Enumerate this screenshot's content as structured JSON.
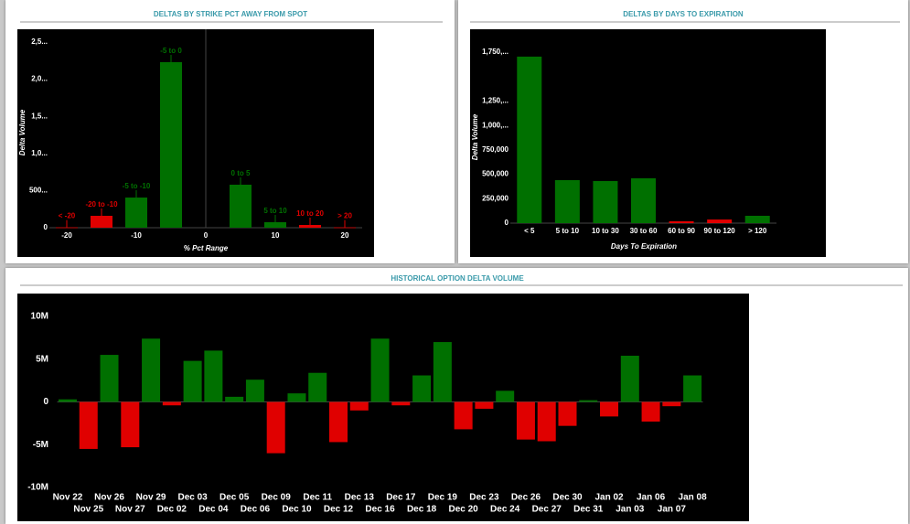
{
  "chart_data": [
    {
      "type": "bar",
      "title": "DELTAS BY STRIKE PCT AWAY FROM SPOT",
      "y_label": "Delta Volume",
      "x_label": "% Pct Range",
      "categories": [
        "< -20",
        "-20 to -10",
        "-5 to -10",
        "-5 to 0",
        "0 to 5",
        "5 to 10",
        "10 to 20",
        "> 20"
      ],
      "x": [
        -20,
        -15,
        -10,
        -5,
        5,
        10,
        15,
        20
      ],
      "values": [
        5000,
        160000,
        406000,
        2229000,
        579000,
        74000,
        37000,
        5000
      ],
      "colors": [
        "#e00000",
        "#e00000",
        "#007000",
        "#007000",
        "#007000",
        "#007000",
        "#e00000",
        "#e00000"
      ],
      "xlim": [
        -22.5,
        22.5
      ],
      "xticks": [
        -20,
        -10,
        0,
        10,
        20
      ],
      "ylim": [
        0,
        2500000
      ],
      "yticks": [
        0,
        {
          "value": 500000,
          "label": "500..."
        },
        {
          "value": 1000000,
          "label": "1,0..."
        },
        {
          "value": 1500000,
          "label": "1,5..."
        },
        {
          "value": 2000000,
          "label": "2,0..."
        },
        {
          "value": 2500000,
          "label": "2,5..."
        }
      ]
    },
    {
      "type": "bar",
      "title": "DELTAS BY DAYS TO EXPIRATION",
      "y_label": "Delta Volume",
      "x_label": "Days To Expiration",
      "categories": [
        "< 5",
        "5 to 10",
        "10 to 30",
        "30 to 60",
        "60 to 90",
        "90 to 120",
        "> 120"
      ],
      "values": [
        1704000,
        440000,
        431000,
        459000,
        19000,
        37000,
        75000
      ],
      "colors": [
        "#007000",
        "#007000",
        "#007000",
        "#007000",
        "#e00000",
        "#e00000",
        "#007000"
      ],
      "ylim": [
        0,
        1750000
      ],
      "yticks": [
        0,
        {
          "value": 250000,
          "label": "250,000"
        },
        {
          "value": 500000,
          "label": "500,000"
        },
        {
          "value": 750000,
          "label": "750,000"
        },
        {
          "value": 1000000,
          "label": "1,000,..."
        },
        {
          "value": 1250000,
          "label": "1,250,..."
        },
        {
          "value": 1750000,
          "label": "1,750,..."
        }
      ]
    },
    {
      "type": "bar",
      "title": "HISTORICAL OPTION DELTA VOLUME",
      "categories": [
        "Nov 22",
        "Nov 25",
        "Nov 26",
        "Nov 27",
        "Nov 29",
        "Dec 02",
        "Dec 03",
        "Dec 04",
        "Dec 05",
        "Dec 06",
        "Dec 09",
        "Dec 10",
        "Dec 11",
        "Dec 12",
        "Dec 13",
        "Dec 16",
        "Dec 17",
        "Dec 18",
        "Dec 19",
        "Dec 20",
        "Dec 23",
        "Dec 24",
        "Dec 26",
        "Dec 27",
        "Dec 30",
        "Dec 31",
        "Jan 02",
        "Jan 03",
        "Jan 06",
        "Jan 07",
        "Jan 08"
      ],
      "values": [
        300000,
        -5500000,
        5500000,
        -5300000,
        7400000,
        -400000,
        4800000,
        6000000,
        600000,
        2600000,
        -6000000,
        1000000,
        3400000,
        -4700000,
        -1000000,
        7400000,
        -400000,
        3100000,
        7000000,
        -3200000,
        -800000,
        1300000,
        -4400000,
        -4600000,
        -2800000,
        200000,
        -1700000,
        5400000,
        -2300000,
        -500000,
        3100000
      ],
      "positive_color": "#007000",
      "negative_color": "#e00000",
      "ylim": [
        -10000000,
        10000000
      ],
      "yticks": [
        {
          "value": -10000000,
          "label": "-10M"
        },
        {
          "value": -5000000,
          "label": "-5M"
        },
        0,
        {
          "value": 5000000,
          "label": "5M"
        },
        {
          "value": 10000000,
          "label": "10M"
        }
      ]
    }
  ]
}
